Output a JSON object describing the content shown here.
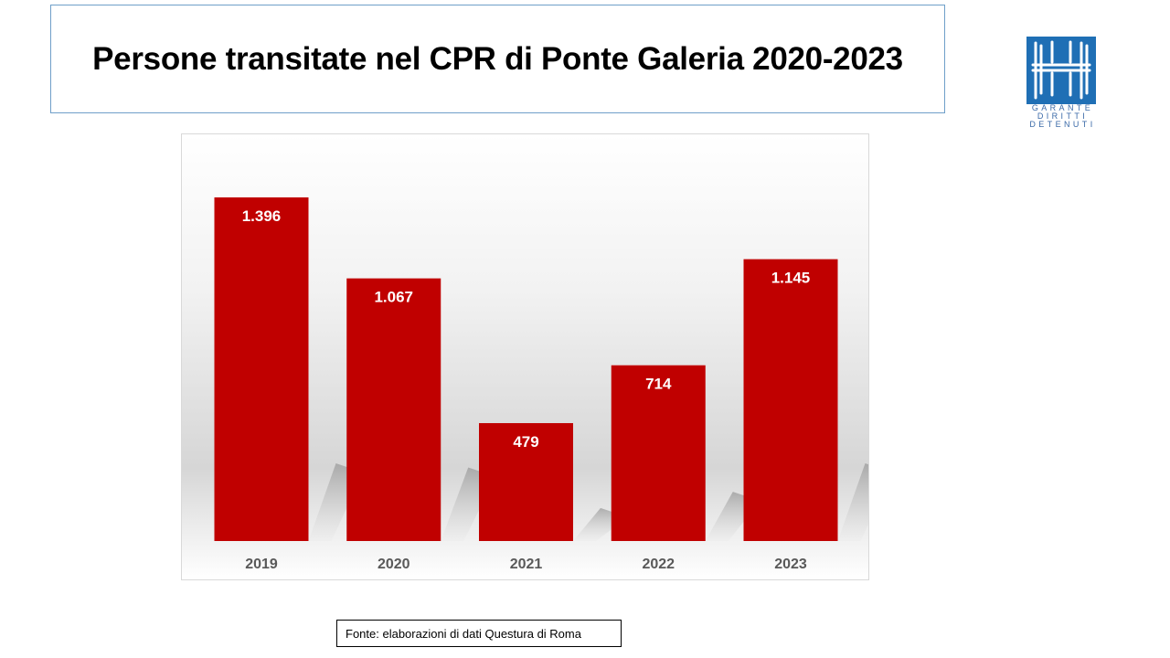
{
  "title": "Persone transitate nel CPR di Ponte Galeria 2020-2023",
  "logo": {
    "lines": [
      "GARANTE",
      "DIRITTI",
      "DETENUTI"
    ],
    "color": "#1f6fb5"
  },
  "source": "Fonte: elaborazioni di dati Questura di Roma",
  "chart_data": {
    "type": "bar",
    "categories": [
      "2019",
      "2020",
      "2021",
      "2022",
      "2023"
    ],
    "values": [
      1396,
      1067,
      479,
      714,
      1145
    ],
    "data_labels": [
      "1.396",
      "1.067",
      "479",
      "714",
      "1.145"
    ],
    "ylim": [
      0,
      1396
    ],
    "grid": false,
    "legend": "none",
    "bar_color": "#c00000",
    "label_color": "#ffffff",
    "tick_color": "#595959"
  }
}
